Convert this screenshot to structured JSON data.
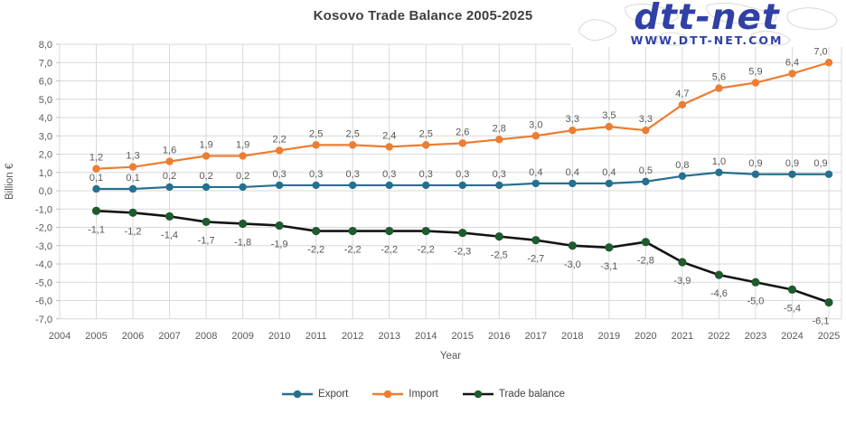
{
  "header": {
    "title": "Kosovo Trade Balance 2005-2025",
    "logo_text": "dtt-net",
    "logo_url": "WWW.DTT-NET.COM"
  },
  "chart_data": {
    "type": "line",
    "title": "Kosovo Trade Balance 2005-2025",
    "xlabel": "Year",
    "ylabel": "Billion €",
    "x": [
      2005,
      2006,
      2007,
      2008,
      2009,
      2010,
      2011,
      2012,
      2013,
      2014,
      2015,
      2016,
      2017,
      2018,
      2019,
      2020,
      2021,
      2022,
      2023,
      2024,
      2025
    ],
    "x_axis_ticks": [
      "2004",
      "2005",
      "2006",
      "2007",
      "2008",
      "2009",
      "2010",
      "2011",
      "2012",
      "2013",
      "2014",
      "2015",
      "2016",
      "2017",
      "2018",
      "2019",
      "2020",
      "2021",
      "2022",
      "2023",
      "2024",
      "2025"
    ],
    "x_axis_range": [
      2004,
      2025
    ],
    "ylim": [
      -7,
      8
    ],
    "y_tick_values": [
      8,
      7,
      6,
      5,
      4,
      3,
      2,
      1,
      0,
      -1,
      -2,
      -3,
      -4,
      -5,
      -6,
      -7
    ],
    "y_tick_labels": [
      "8,0",
      "7,0",
      "6,0",
      "5,0",
      "4,0",
      "3,0",
      "2,0",
      "1,0",
      "0,0",
      "-1,0",
      "-2,0",
      "-3,0",
      "-4,0",
      "-5,0",
      "-6,0",
      "-7,0"
    ],
    "grid": true,
    "legend_position": "bottom",
    "colors": {
      "grid": "#d9d9d9",
      "axis": "#bfbfbf",
      "tick_label": "#595959",
      "data_label": "#595959",
      "title": "#3f3f3f",
      "logo_blue": "#3040a5"
    },
    "series": [
      {
        "name": "Export",
        "color": "#26708f",
        "marker_color": "#26708f",
        "label_position": "above",
        "values": [
          0.1,
          0.1,
          0.2,
          0.2,
          0.2,
          0.3,
          0.3,
          0.3,
          0.3,
          0.3,
          0.3,
          0.3,
          0.4,
          0.4,
          0.4,
          0.5,
          0.8,
          1.0,
          0.9,
          0.9,
          0.9
        ],
        "labels": [
          "0,1",
          "0,1",
          "0,2",
          "0,2",
          "0,2",
          "0,3",
          "0,3",
          "0,3",
          "0,3",
          "0,3",
          "0,3",
          "0,3",
          "0,4",
          "0,4",
          "0,4",
          "0,5",
          "0,8",
          "1,0",
          "0,9",
          "0,9",
          "0,9"
        ]
      },
      {
        "name": "Import",
        "color": "#ed7d31",
        "marker_color": "#ed7d31",
        "label_position": "above",
        "values": [
          1.2,
          1.3,
          1.6,
          1.9,
          1.9,
          2.2,
          2.5,
          2.5,
          2.4,
          2.5,
          2.6,
          2.8,
          3.0,
          3.3,
          3.5,
          3.3,
          4.7,
          5.6,
          5.9,
          6.4,
          7.0
        ],
        "labels": [
          "1,2",
          "1,3",
          "1,6",
          "1,9",
          "1,9",
          "2,2",
          "2,5",
          "2,5",
          "2,4",
          "2,5",
          "2,6",
          "2,8",
          "3,0",
          "3,3",
          "3,5",
          "3,3",
          "4,7",
          "5,6",
          "5,9",
          "6,4",
          "7,0"
        ]
      },
      {
        "name": "Trade balance",
        "color": "#141414",
        "marker_color": "#1e5b2e",
        "label_position": "below",
        "values": [
          -1.1,
          -1.2,
          -1.4,
          -1.7,
          -1.8,
          -1.9,
          -2.2,
          -2.2,
          -2.2,
          -2.2,
          -2.3,
          -2.5,
          -2.7,
          -3.0,
          -3.1,
          -2.8,
          -3.9,
          -4.6,
          -5.0,
          -5.4,
          -6.1
        ],
        "labels": [
          "-1,1",
          "-1,2",
          "-1,4",
          "-1,7",
          "-1,8",
          "-1,9",
          "-2,2",
          "-2,2",
          "-2,2",
          "-2,2",
          "-2,3",
          "-2,5",
          "-2,7",
          "-3,0",
          "-3,1",
          "-2,8",
          "-3,9",
          "-4,6",
          "-5,0",
          "-5,4",
          "-6,1"
        ]
      }
    ]
  }
}
